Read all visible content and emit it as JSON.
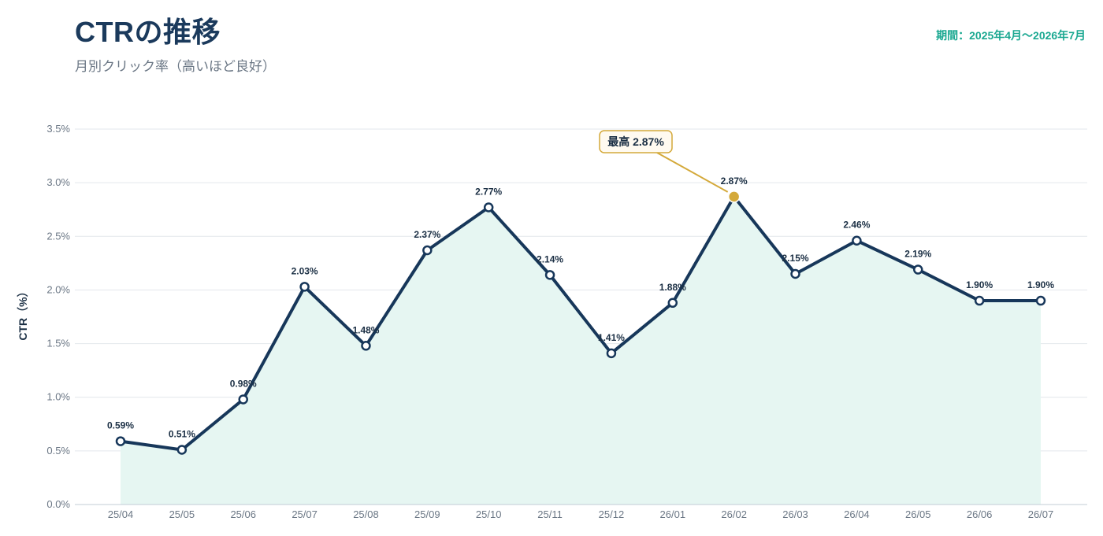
{
  "header": {
    "title": "CTRの推移",
    "subtitle": "月別クリック率（高いほど良好）",
    "period": "期間：2025年4月〜2026年7月"
  },
  "chart_data": {
    "type": "line",
    "x": [
      "25/04",
      "25/05",
      "25/06",
      "25/07",
      "25/08",
      "25/09",
      "25/10",
      "25/11",
      "25/12",
      "26/01",
      "26/02",
      "26/03",
      "26/04",
      "26/05",
      "26/06",
      "26/07"
    ],
    "series": [
      {
        "values": [
          0.59,
          0.51,
          0.98,
          2.03,
          1.48,
          2.37,
          2.77,
          2.14,
          1.41,
          1.88,
          2.87,
          2.15,
          2.46,
          2.19,
          1.9,
          1.9
        ]
      }
    ],
    "data_labels": [
      "0.59%",
      "0.51%",
      "0.98%",
      "2.03%",
      "1.48%",
      "2.37%",
      "2.77%",
      "2.14%",
      "1.41%",
      "1.88%",
      "2.87%",
      "2.15%",
      "2.46%",
      "2.19%",
      "1.90%",
      "1.90%"
    ],
    "ylabel": "CTR（%）",
    "ylim": [
      0,
      3.5
    ],
    "yticks": [
      0,
      0.5,
      1.0,
      1.5,
      2.0,
      2.5,
      3.0,
      3.5
    ],
    "ytick_labels": [
      "0.0%",
      "0.5%",
      "1.0%",
      "1.5%",
      "2.0%",
      "2.5%",
      "3.0%",
      "3.5%"
    ],
    "grid": true,
    "annotation": {
      "index": 10,
      "text": "最高 2.87%"
    },
    "colors": {
      "line": "#17375a",
      "fill": "#e6f6f2",
      "highlight": "#d4a93a",
      "grid": "#e3e7ec"
    }
  }
}
